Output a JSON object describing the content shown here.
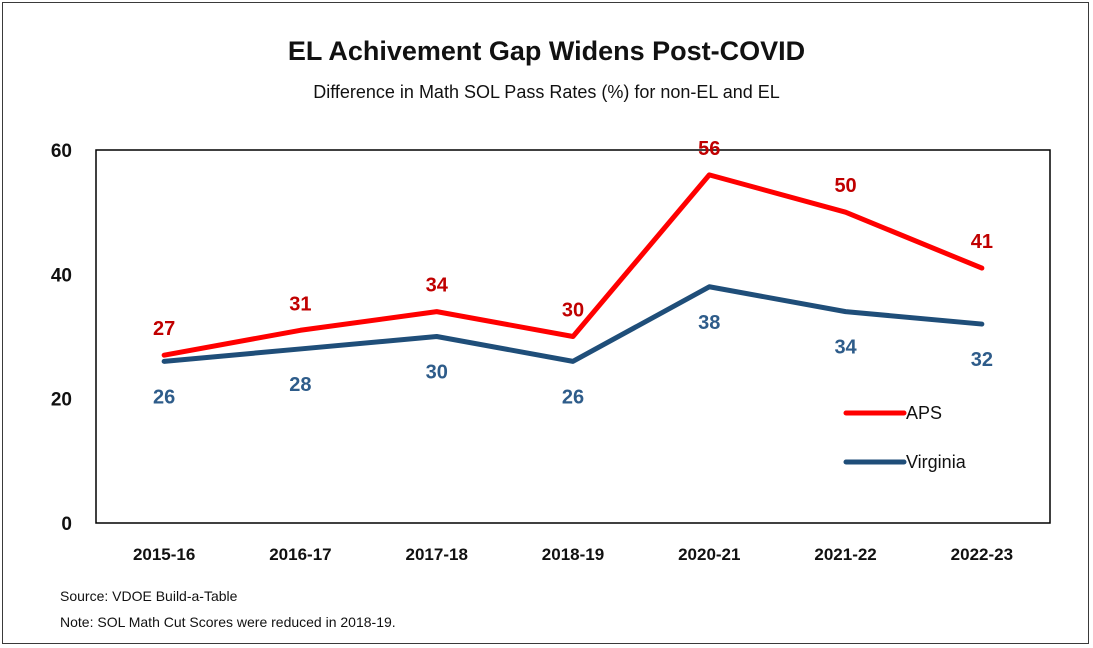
{
  "chart_data": {
    "type": "line",
    "title": "EL Achivement Gap Widens Post-COVID",
    "subtitle": "Difference in Math SOL Pass Rates (%) for non-EL and EL",
    "categories": [
      "2015-16",
      "2016-17",
      "2017-18",
      "2018-19",
      "2020-21",
      "2021-22",
      "2022-23"
    ],
    "series": [
      {
        "name": "APS",
        "color": "#ff0000",
        "label_color": "#c00000",
        "values": [
          27,
          31,
          34,
          30,
          56,
          50,
          41
        ],
        "label_position": "above"
      },
      {
        "name": "Virginia",
        "color": "#1f4e79",
        "label_color": "#2e5c8a",
        "values": [
          26,
          28,
          30,
          26,
          38,
          34,
          32
        ],
        "label_position": "below"
      }
    ],
    "ylim": [
      0,
      60
    ],
    "yticks": [
      "0",
      "20",
      "40",
      "60"
    ],
    "grid": false,
    "legend_position": "lower-right"
  },
  "footer": {
    "source": "Source: VDOE Build-a-Table",
    "note": "Note: SOL Math Cut Scores were reduced in 2018-19."
  }
}
